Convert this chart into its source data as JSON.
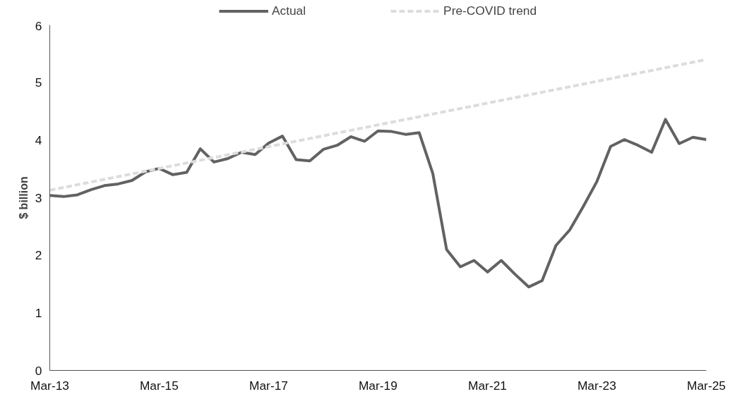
{
  "chart_data": {
    "type": "line",
    "ylabel": "$ billion",
    "xlim": [
      "2013-03",
      "2025-03"
    ],
    "ylim": [
      0,
      6
    ],
    "yticks": [
      0,
      1,
      2,
      3,
      4,
      5,
      6
    ],
    "xticks": [
      {
        "value": "2013-03",
        "label": "Mar-13"
      },
      {
        "value": "2015-03",
        "label": "Mar-15"
      },
      {
        "value": "2017-03",
        "label": "Mar-17"
      },
      {
        "value": "2019-03",
        "label": "Mar-19"
      },
      {
        "value": "2021-03",
        "label": "Mar-21"
      },
      {
        "value": "2023-03",
        "label": "Mar-23"
      },
      {
        "value": "2025-03",
        "label": "Mar-25"
      }
    ],
    "grid": false,
    "legend": "top",
    "series": [
      {
        "name": "Actual",
        "color": "#626262",
        "line_style": "solid",
        "x": [
          "2013-03",
          "2013-06",
          "2013-09",
          "2013-12",
          "2014-03",
          "2014-06",
          "2014-09",
          "2014-12",
          "2015-03",
          "2015-06",
          "2015-09",
          "2015-12",
          "2016-03",
          "2016-06",
          "2016-09",
          "2016-12",
          "2017-03",
          "2017-06",
          "2017-09",
          "2017-12",
          "2018-03",
          "2018-06",
          "2018-09",
          "2018-12",
          "2019-03",
          "2019-06",
          "2019-09",
          "2019-12",
          "2020-03",
          "2020-06",
          "2020-09",
          "2020-12",
          "2021-03",
          "2021-06",
          "2021-09",
          "2021-12",
          "2022-03",
          "2022-06",
          "2022-09",
          "2022-12",
          "2023-03",
          "2023-06",
          "2023-09",
          "2023-12",
          "2024-03",
          "2024-06",
          "2024-09",
          "2024-12",
          "2025-03"
        ],
        "values": [
          3.04,
          3.02,
          3.05,
          3.14,
          3.21,
          3.24,
          3.3,
          3.45,
          3.51,
          3.4,
          3.44,
          3.85,
          3.62,
          3.68,
          3.79,
          3.75,
          3.95,
          4.07,
          3.66,
          3.64,
          3.84,
          3.91,
          4.06,
          3.98,
          4.16,
          4.15,
          4.1,
          4.13,
          3.42,
          2.1,
          1.8,
          1.91,
          1.71,
          1.91,
          1.67,
          1.45,
          1.56,
          2.17,
          2.44,
          2.85,
          3.28,
          3.89,
          4.01,
          3.91,
          3.79,
          4.36,
          3.94,
          4.05,
          4.01
        ]
      },
      {
        "name": "Pre-COVID trend",
        "color": "#dcdcdc",
        "line_style": "dashed",
        "x": [
          "2013-03",
          "2025-03"
        ],
        "values": [
          3.13,
          5.4
        ]
      }
    ]
  }
}
